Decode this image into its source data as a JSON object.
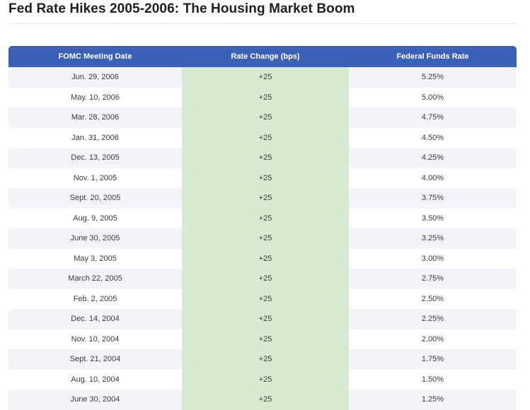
{
  "title": "Fed Rate Hikes 2005-2006: The Housing Market Boom",
  "colors": {
    "header_bg": "#3a60b8",
    "highlight_column": "#d7ebd3",
    "stripe": "#f3f4f9"
  },
  "chart_data": {
    "type": "table",
    "title": "Fed Rate Hikes 2005-2006: The Housing Market Boom",
    "columns": [
      "FOMC Meeting Date",
      "Rate Change (bps)",
      "Federal Funds Rate"
    ],
    "rows": [
      [
        "Jun. 29, 2006",
        "+25",
        "5.25%"
      ],
      [
        "May. 10, 2006",
        "+25",
        "5.00%"
      ],
      [
        "Mar. 28, 2006",
        "+25",
        "4.75%"
      ],
      [
        "Jan. 31, 2006",
        "+25",
        "4.50%"
      ],
      [
        "Dec. 13, 2005",
        "+25",
        "4.25%"
      ],
      [
        "Nov. 1, 2005",
        "+25",
        "4.00%"
      ],
      [
        "Sept. 20, 2005",
        "+25",
        "3.75%"
      ],
      [
        "Aug. 9, 2005",
        "+25",
        "3.50%"
      ],
      [
        "June 30, 2005",
        "+25",
        "3.25%"
      ],
      [
        "May 3, 2005",
        "+25",
        "3.00%"
      ],
      [
        "March 22, 2005",
        "+25",
        "2.75%"
      ],
      [
        "Feb. 2, 2005",
        "+25",
        "2.50%"
      ],
      [
        "Dec. 14, 2004",
        "+25",
        "2.25%"
      ],
      [
        "Nov. 10, 2004",
        "+25",
        "2.00%"
      ],
      [
        "Sept. 21, 2004",
        "+25",
        "1.75%"
      ],
      [
        "Aug. 10, 2004",
        "+25",
        "1.50%"
      ],
      [
        "June 30, 2004",
        "+25",
        "1.25%"
      ]
    ]
  }
}
